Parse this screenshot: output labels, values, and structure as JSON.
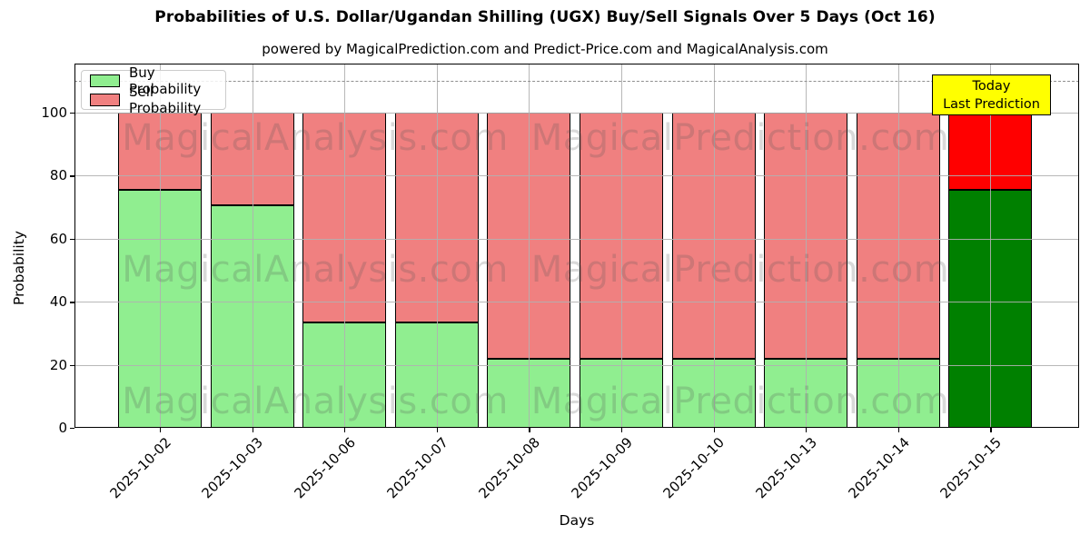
{
  "header": {
    "title": "Probabilities of U.S. Dollar/Ugandan Shilling (UGX) Buy/Sell Signals Over 5 Days (Oct 16)",
    "subtitle": "powered by MagicalPrediction.com and Predict-Price.com and MagicalAnalysis.com"
  },
  "axes": {
    "x_label": "Days",
    "y_label": "Probability"
  },
  "legend": {
    "items": [
      {
        "label": "Buy Probability",
        "color": "#90EE90"
      },
      {
        "label": "Sell Probability",
        "color": "#F08080"
      }
    ]
  },
  "annotation": {
    "lines": [
      "Today",
      "Last Prediction"
    ],
    "bg_color": "#FFFF00",
    "border_color": "#000000"
  },
  "watermarks": {
    "left_text": "MagicalAnalysis.com",
    "right_text": "MagicalPrediction.com"
  },
  "chart_data": {
    "type": "bar",
    "stacked": true,
    "title": "Probabilities of U.S. Dollar/Ugandan Shilling (UGX) Buy/Sell Signals Over 5 Days (Oct 16)",
    "xlabel": "Days",
    "ylabel": "Probability",
    "ylim": [
      0,
      115.6
    ],
    "y_ticks": [
      0,
      20,
      40,
      60,
      80,
      100
    ],
    "grid": true,
    "legend_position": "upper-left",
    "dashed_reference_line_y": 110,
    "categories": [
      "2025-10-02",
      "2025-10-03",
      "2025-10-06",
      "2025-10-07",
      "2025-10-08",
      "2025-10-09",
      "2025-10-10",
      "2025-10-13",
      "2025-10-14",
      "2025-10-15"
    ],
    "series": [
      {
        "name": "Buy Probability",
        "color": "#90EE90",
        "values": [
          75.5,
          70.5,
          33.3,
          33.3,
          22,
          22,
          22,
          22,
          22,
          75.5
        ]
      },
      {
        "name": "Sell Probability",
        "color": "#F08080",
        "values": [
          24.5,
          29.5,
          66.7,
          66.7,
          78,
          78,
          78,
          78,
          78,
          24.5
        ]
      }
    ],
    "bar_edge_color": "#000000",
    "highlight_last_bar": {
      "buy_color": "#008000",
      "sell_color": "#FF0000"
    }
  }
}
